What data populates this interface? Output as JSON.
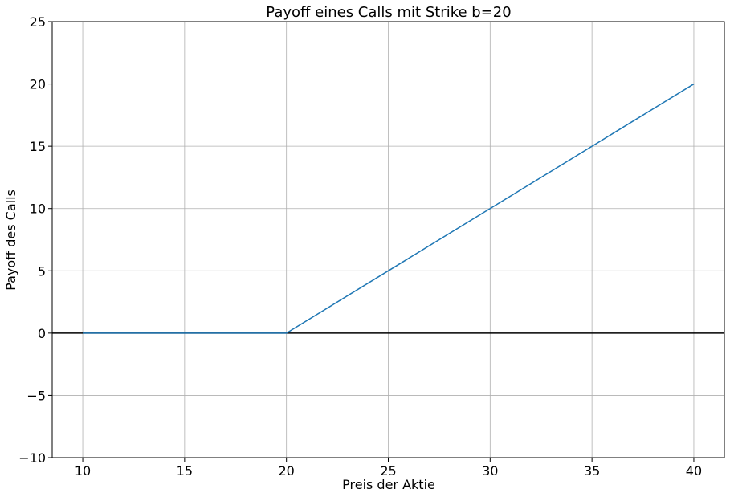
{
  "chart_data": {
    "type": "line",
    "title": "Payoff eines Calls mit Strike b=20",
    "xlabel": "Preis der Aktie",
    "ylabel": "Payoff des Calls",
    "xlim": [
      8.5,
      41.5
    ],
    "ylim": [
      -10,
      25
    ],
    "xticks": [
      10,
      15,
      20,
      25,
      30,
      35,
      40
    ],
    "yticks": [
      -10,
      -5,
      0,
      5,
      10,
      15,
      20,
      25
    ],
    "xtick_labels": [
      "10",
      "15",
      "20",
      "25",
      "30",
      "35",
      "40"
    ],
    "ytick_labels": [
      "−10",
      "−5",
      "0",
      "5",
      "10",
      "15",
      "20",
      "25"
    ],
    "grid": true,
    "horizontal_reference_line": 0,
    "series": [
      {
        "color": "#1f77b4",
        "x": [
          10,
          20,
          40
        ],
        "y": [
          0,
          0,
          20
        ]
      }
    ]
  }
}
